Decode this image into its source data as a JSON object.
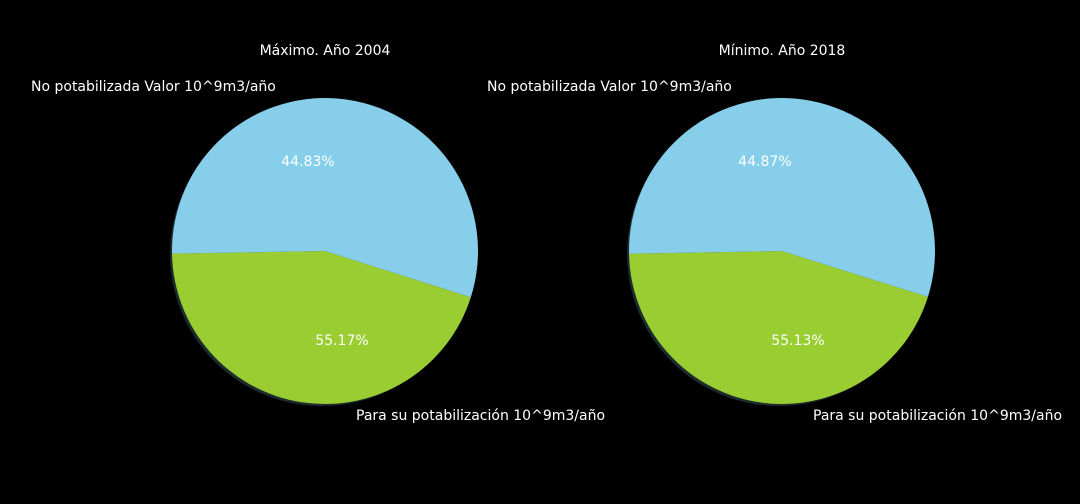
{
  "background": "#000000",
  "text_color": "#ffffff",
  "shadow_color": "#1c2b2e",
  "chart_data": [
    {
      "type": "pie",
      "title": "Máximo. Año 2004",
      "labels": [
        "No potabilizada Valor 10^9m3/año",
        "Para su potabilización 10^9m3/año"
      ],
      "values": [
        44.83,
        55.17
      ],
      "percent_labels": [
        "44.83%",
        "55.17%"
      ],
      "colors": [
        "#9acd32",
        "#87ceeb"
      ],
      "start_angle_deg": 181,
      "direction": "counterclockwise",
      "shadow": true
    },
    {
      "type": "pie",
      "title": "Mínimo. Año 2018",
      "labels": [
        "No potabilizada Valor 10^9m3/año",
        "Para su potabilización 10^9m3/año"
      ],
      "values": [
        44.87,
        55.13
      ],
      "percent_labels": [
        "44.87%",
        "55.13%"
      ],
      "colors": [
        "#9acd32",
        "#87ceeb"
      ],
      "start_angle_deg": 181,
      "direction": "counterclockwise",
      "shadow": true
    }
  ]
}
